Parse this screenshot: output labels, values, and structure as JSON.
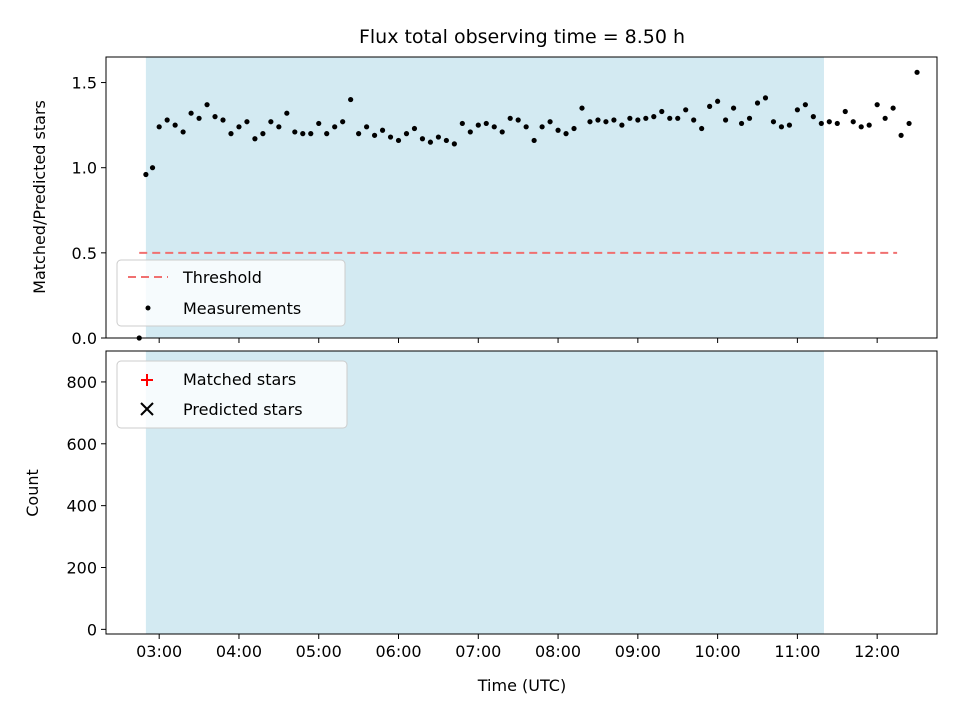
{
  "chart_data": [
    {
      "type": "scatter",
      "title": "Flux total observing time = 8.50 h",
      "xlabel": "",
      "ylabel": "Matched/Predicted stars",
      "xlim": [
        "02:20",
        "12:45"
      ],
      "ylim": [
        0,
        1.65
      ],
      "x_ticks": [
        "03:00",
        "04:00",
        "05:00",
        "06:00",
        "07:00",
        "08:00",
        "09:00",
        "10:00",
        "11:00",
        "12:00"
      ],
      "y_ticks": [
        "0.0",
        "0.5",
        "1.0",
        "1.5"
      ],
      "shaded_span": [
        "02:50",
        "11:20"
      ],
      "shaded_color": "#d3eaf2",
      "threshold": {
        "name": "Threshold",
        "value": 0.5,
        "x_range": [
          "02:45",
          "12:15"
        ],
        "color": "#f07070"
      },
      "series": [
        {
          "name": "Measurements",
          "color": "#000000",
          "marker": "dot",
          "points": [
            [
              "02:45",
              0.0
            ],
            [
              "02:50",
              0.96
            ],
            [
              "02:55",
              1.0
            ],
            [
              "03:00",
              1.24
            ],
            [
              "03:06",
              1.28
            ],
            [
              "03:12",
              1.25
            ],
            [
              "03:18",
              1.21
            ],
            [
              "03:24",
              1.32
            ],
            [
              "03:30",
              1.29
            ],
            [
              "03:36",
              1.37
            ],
            [
              "03:42",
              1.3
            ],
            [
              "03:48",
              1.28
            ],
            [
              "03:54",
              1.2
            ],
            [
              "04:00",
              1.24
            ],
            [
              "04:06",
              1.27
            ],
            [
              "04:12",
              1.17
            ],
            [
              "04:18",
              1.2
            ],
            [
              "04:24",
              1.27
            ],
            [
              "04:30",
              1.24
            ],
            [
              "04:36",
              1.32
            ],
            [
              "04:42",
              1.21
            ],
            [
              "04:48",
              1.2
            ],
            [
              "04:54",
              1.2
            ],
            [
              "05:00",
              1.26
            ],
            [
              "05:06",
              1.2
            ],
            [
              "05:12",
              1.24
            ],
            [
              "05:18",
              1.27
            ],
            [
              "05:24",
              1.4
            ],
            [
              "05:30",
              1.2
            ],
            [
              "05:36",
              1.24
            ],
            [
              "05:42",
              1.19
            ],
            [
              "05:48",
              1.22
            ],
            [
              "05:54",
              1.18
            ],
            [
              "06:00",
              1.16
            ],
            [
              "06:06",
              1.2
            ],
            [
              "06:12",
              1.23
            ],
            [
              "06:18",
              1.17
            ],
            [
              "06:24",
              1.15
            ],
            [
              "06:30",
              1.18
            ],
            [
              "06:36",
              1.16
            ],
            [
              "06:42",
              1.14
            ],
            [
              "06:48",
              1.26
            ],
            [
              "06:54",
              1.21
            ],
            [
              "07:00",
              1.25
            ],
            [
              "07:06",
              1.26
            ],
            [
              "07:12",
              1.24
            ],
            [
              "07:18",
              1.21
            ],
            [
              "07:24",
              1.29
            ],
            [
              "07:30",
              1.28
            ],
            [
              "07:36",
              1.24
            ],
            [
              "07:42",
              1.16
            ],
            [
              "07:48",
              1.24
            ],
            [
              "07:54",
              1.27
            ],
            [
              "08:00",
              1.22
            ],
            [
              "08:06",
              1.2
            ],
            [
              "08:12",
              1.23
            ],
            [
              "08:18",
              1.35
            ],
            [
              "08:24",
              1.27
            ],
            [
              "08:30",
              1.28
            ],
            [
              "08:36",
              1.27
            ],
            [
              "08:42",
              1.28
            ],
            [
              "08:48",
              1.25
            ],
            [
              "08:54",
              1.29
            ],
            [
              "09:00",
              1.28
            ],
            [
              "09:06",
              1.29
            ],
            [
              "09:12",
              1.3
            ],
            [
              "09:18",
              1.33
            ],
            [
              "09:24",
              1.29
            ],
            [
              "09:30",
              1.29
            ],
            [
              "09:36",
              1.34
            ],
            [
              "09:42",
              1.28
            ],
            [
              "09:48",
              1.23
            ],
            [
              "09:54",
              1.36
            ],
            [
              "10:00",
              1.39
            ],
            [
              "10:06",
              1.28
            ],
            [
              "10:12",
              1.35
            ],
            [
              "10:18",
              1.26
            ],
            [
              "10:24",
              1.29
            ],
            [
              "10:30",
              1.38
            ],
            [
              "10:36",
              1.41
            ],
            [
              "10:42",
              1.27
            ],
            [
              "10:48",
              1.24
            ],
            [
              "10:54",
              1.25
            ],
            [
              "11:00",
              1.34
            ],
            [
              "11:06",
              1.37
            ],
            [
              "11:12",
              1.3
            ],
            [
              "11:18",
              1.26
            ],
            [
              "11:24",
              1.27
            ],
            [
              "11:30",
              1.26
            ],
            [
              "11:36",
              1.33
            ],
            [
              "11:42",
              1.27
            ],
            [
              "11:48",
              1.24
            ],
            [
              "11:54",
              1.25
            ],
            [
              "12:00",
              1.37
            ],
            [
              "12:06",
              1.29
            ],
            [
              "12:12",
              1.35
            ],
            [
              "12:18",
              1.19
            ],
            [
              "12:24",
              1.26
            ],
            [
              "12:30",
              1.56
            ]
          ]
        }
      ],
      "legend_position": "lower-left"
    },
    {
      "type": "scatter",
      "title": "",
      "xlabel": "Time (UTC)",
      "ylabel": "Count",
      "xlim": [
        "02:20",
        "12:45"
      ],
      "ylim": [
        -15,
        900
      ],
      "x_ticks": [
        "03:00",
        "04:00",
        "05:00",
        "06:00",
        "07:00",
        "08:00",
        "09:00",
        "10:00",
        "11:00",
        "12:00"
      ],
      "y_ticks": [
        "0",
        "200",
        "400",
        "600",
        "800"
      ],
      "shaded_span": [
        "02:50",
        "11:20"
      ],
      "shaded_color": "#d3eaf2",
      "series": [
        {
          "name": "Matched stars",
          "color": "#ff0000",
          "marker": "plus"
        },
        {
          "name": "Predicted stars",
          "color": "#000000",
          "marker": "x"
        }
      ],
      "legend_position": "upper-left"
    }
  ]
}
